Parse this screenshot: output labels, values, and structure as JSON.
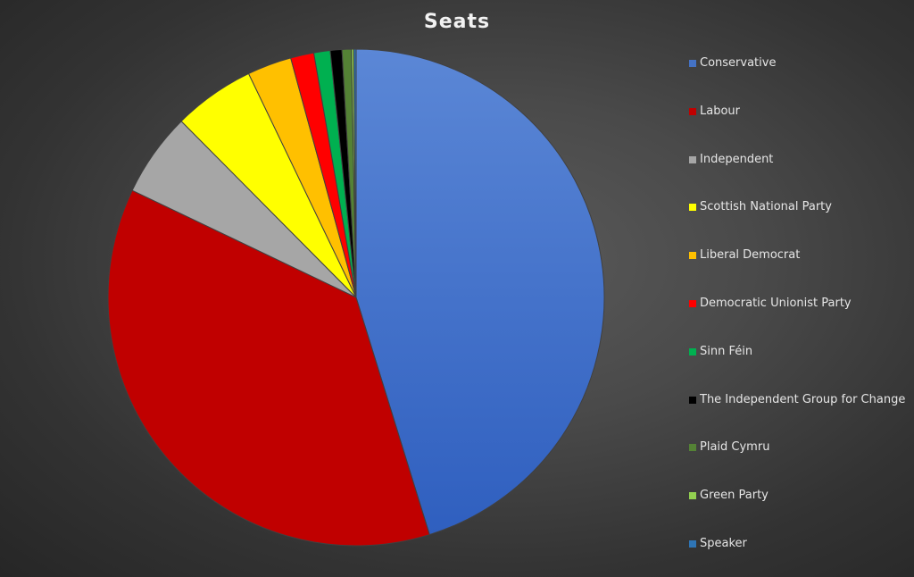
{
  "chart_data": {
    "type": "pie",
    "title": "Seats",
    "categories": [
      "Conservative",
      "Labour",
      "Independent",
      "Scottish National Party",
      "Liberal Democrat",
      "Democratic Unionist Party",
      "Sinn Féin",
      "The Independent Group for Change",
      "Plaid Cymru",
      "Green Party",
      "Speaker"
    ],
    "values": [
      298,
      243,
      36,
      35,
      19,
      10,
      7,
      5,
      4,
      1,
      1
    ],
    "colors": [
      "#4472c4",
      "#c00000",
      "#a6a6a6",
      "#ffff00",
      "#ffc000",
      "#ff0000",
      "#00b050",
      "#000000",
      "#548235",
      "#92d050",
      "#2e75b6"
    ],
    "legend_position": "right"
  }
}
